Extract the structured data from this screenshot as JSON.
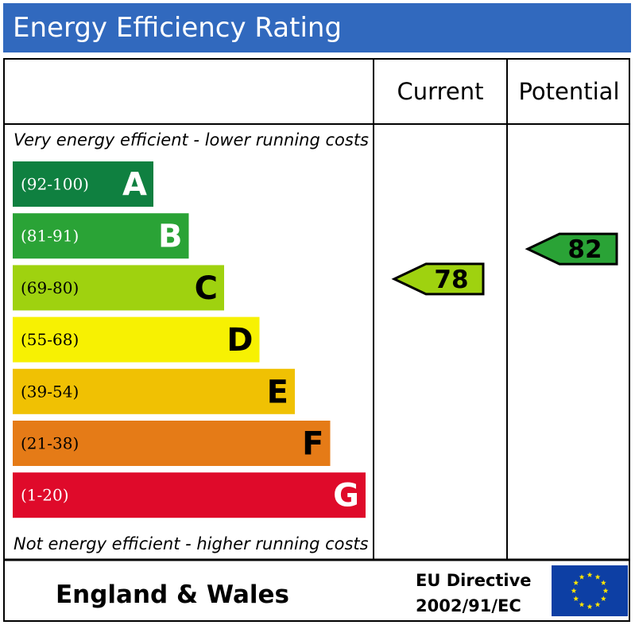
{
  "header": {
    "title": "Energy Efficiency Rating"
  },
  "columns": {
    "current": "Current",
    "potential": "Potential"
  },
  "captions": {
    "top": "Very energy efficient - lower running costs",
    "bottom": "Not energy efficient - higher running costs"
  },
  "footer": {
    "region": "England & Wales",
    "directive_line1": "EU Directive",
    "directive_line2": "2002/91/EC"
  },
  "chart_data": {
    "type": "bar",
    "title": "Energy Efficiency Rating",
    "bands": [
      {
        "letter": "A",
        "range": "(92-100)",
        "min": 92,
        "max": 100,
        "color": "#0f8040",
        "text_color": "#ffffff"
      },
      {
        "letter": "B",
        "range": "(81-91)",
        "min": 81,
        "max": 91,
        "color": "#2aa336",
        "text_color": "#ffffff"
      },
      {
        "letter": "C",
        "range": "(69-80)",
        "min": 69,
        "max": 80,
        "color": "#9fd20f",
        "text_color": "#000000"
      },
      {
        "letter": "D",
        "range": "(55-68)",
        "min": 55,
        "max": 68,
        "color": "#f7f102",
        "text_color": "#000000"
      },
      {
        "letter": "E",
        "range": "(39-54)",
        "min": 39,
        "max": 54,
        "color": "#f0c103",
        "text_color": "#000000"
      },
      {
        "letter": "F",
        "range": "(21-38)",
        "min": 21,
        "max": 38,
        "color": "#e57b17",
        "text_color": "#000000"
      },
      {
        "letter": "G",
        "range": "(1-20)",
        "min": 1,
        "max": 20,
        "color": "#df0a2a",
        "text_color": "#ffffff"
      }
    ],
    "current": {
      "value": 78,
      "band": "C",
      "color": "#9fd20f"
    },
    "potential": {
      "value": 82,
      "band": "B",
      "color": "#2aa336"
    }
  },
  "eu_flag": {
    "icon": "eu-flag-icon",
    "background": "#0d3fa4",
    "stars": "#ffe600"
  }
}
